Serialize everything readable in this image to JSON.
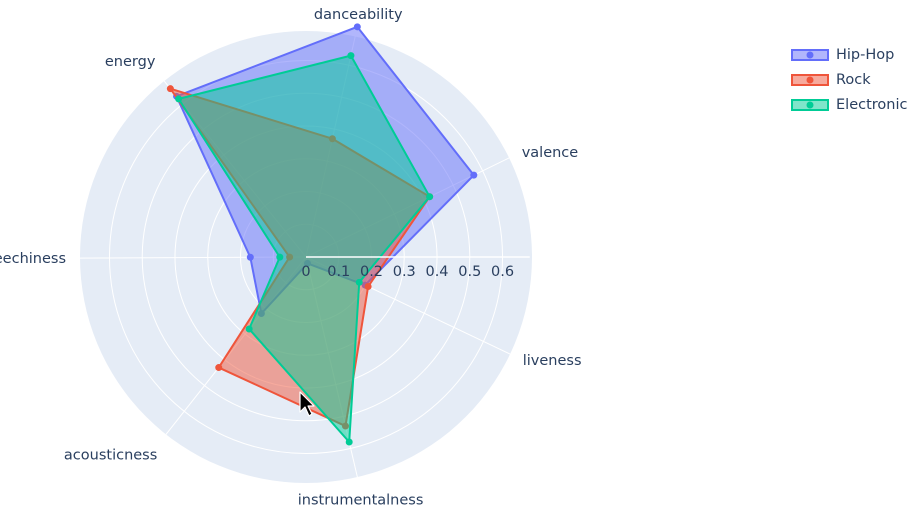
{
  "chart_data": {
    "type": "radar",
    "categories": [
      "valence",
      "liveness",
      "instrumentalness",
      "acousticness",
      "speechiness",
      "energy",
      "danceability"
    ],
    "radial_ticks": [
      "0",
      "0.1",
      "0.2",
      "0.3",
      "0.4",
      "0.5",
      "0.6"
    ],
    "range": [
      0,
      0.69
    ],
    "series": [
      {
        "name": "Hip-Hop",
        "color": "#636efa",
        "values": [
          0.57,
          0.2,
          0.02,
          0.22,
          0.17,
          0.63,
          0.72
        ]
      },
      {
        "name": "Rock",
        "color": "#ef553b",
        "values": [
          0.42,
          0.21,
          0.53,
          0.43,
          0.05,
          0.66,
          0.37
        ]
      },
      {
        "name": "Electronic",
        "color": "#00cc96",
        "values": [
          0.42,
          0.18,
          0.58,
          0.28,
          0.08,
          0.62,
          0.63
        ]
      }
    ],
    "grid": true,
    "legend_position": "top-right"
  }
}
